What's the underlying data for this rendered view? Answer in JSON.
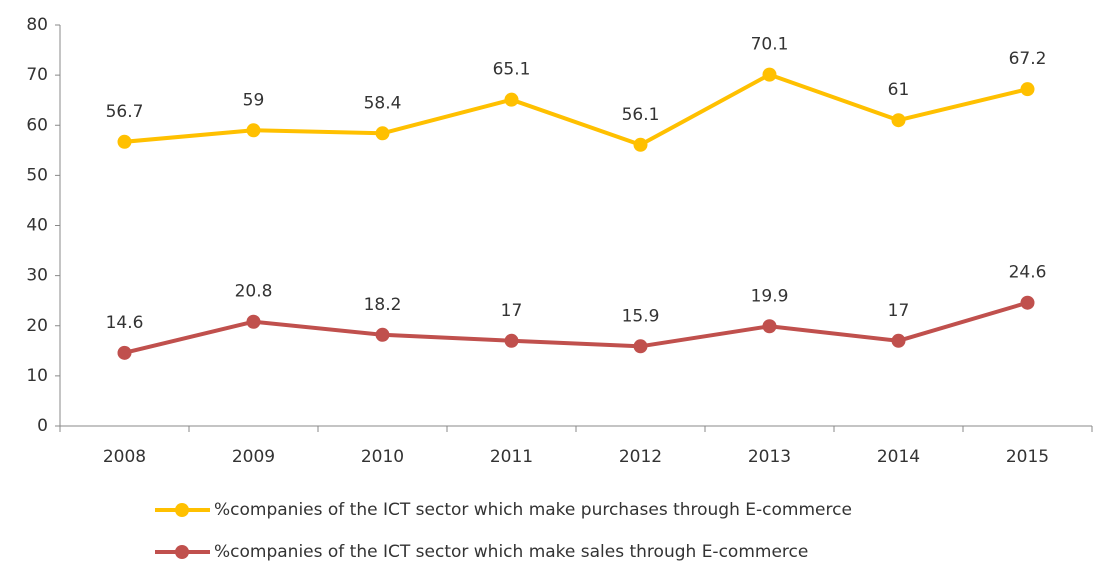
{
  "chart_data": {
    "type": "line",
    "categories": [
      "2008",
      "2009",
      "2010",
      "2011",
      "2012",
      "2013",
      "2014",
      "2015"
    ],
    "series": [
      {
        "name": "%companies of the ICT sector which make purchases through E-commerce",
        "color": "#ffc000",
        "values": [
          56.7,
          59,
          58.4,
          65.1,
          56.1,
          70.1,
          61,
          67.2
        ]
      },
      {
        "name": "%companies of the ICT sector which make sales through E-commerce",
        "color": "#c0504d",
        "values": [
          14.6,
          20.8,
          18.2,
          17,
          15.9,
          19.9,
          17,
          24.6
        ]
      }
    ],
    "ylim": [
      0,
      80
    ],
    "yticks": [
      0,
      10,
      20,
      30,
      40,
      50,
      60,
      70,
      80
    ],
    "grid": false,
    "legend": "bottom"
  }
}
